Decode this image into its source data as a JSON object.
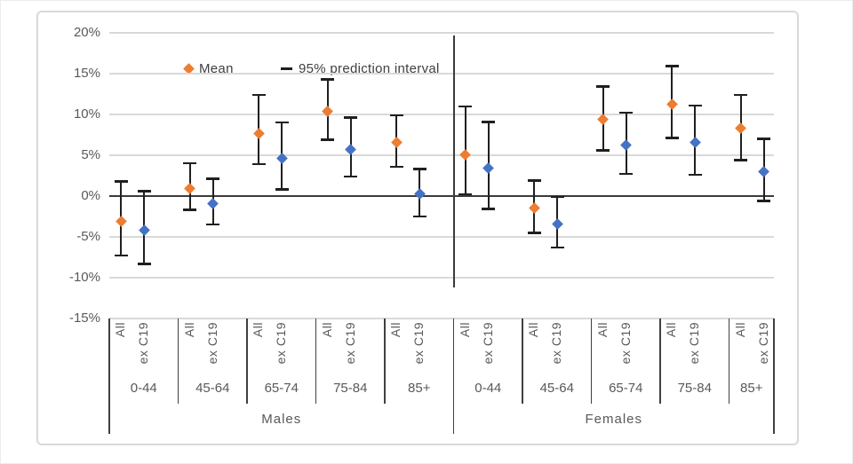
{
  "chart_data": {
    "type": "scatter",
    "title": "",
    "legend": [
      {
        "label": "Mean",
        "marker": "diamond",
        "color": "#ED7D31"
      },
      {
        "label": "95% prediction interval",
        "marker": "dash",
        "color": "#1F1F1F"
      }
    ],
    "y_axis": {
      "ylim": [
        -15,
        20
      ],
      "ticks": [
        20,
        15,
        10,
        5,
        0,
        -5,
        -10,
        -15
      ],
      "tick_labels": [
        "20%",
        "15%",
        "10%",
        "5%",
        "0%",
        "-5%",
        "-10%",
        "-15%"
      ],
      "grid": true
    },
    "x_axis": {
      "series_labels": [
        "All",
        "ex C19"
      ],
      "age_bands": [
        "0-44",
        "45-64",
        "65-74",
        "75-84",
        "85+"
      ],
      "groups": [
        "Males",
        "Females"
      ]
    },
    "colors": {
      "All": "#ED7D31",
      "ex C19": "#4472C4",
      "error_bar": "#1F1F1F",
      "gridline": "#D9D9D9",
      "axis_line": "#3B3B3B",
      "label_text": "#595959"
    },
    "points": [
      {
        "group": "Males",
        "age": "0-44",
        "series": "All",
        "mean": -3.1,
        "lo": -7.3,
        "hi": 1.8
      },
      {
        "group": "Males",
        "age": "0-44",
        "series": "ex C19",
        "mean": -4.2,
        "lo": -8.3,
        "hi": 0.6
      },
      {
        "group": "Males",
        "age": "45-64",
        "series": "All",
        "mean": 0.9,
        "lo": -1.7,
        "hi": 4.0
      },
      {
        "group": "Males",
        "age": "45-64",
        "series": "ex C19",
        "mean": -0.9,
        "lo": -3.5,
        "hi": 2.1
      },
      {
        "group": "Males",
        "age": "65-74",
        "series": "All",
        "mean": 7.7,
        "lo": 3.9,
        "hi": 12.4
      },
      {
        "group": "Males",
        "age": "65-74",
        "series": "ex C19",
        "mean": 4.6,
        "lo": 0.8,
        "hi": 9.0
      },
      {
        "group": "Males",
        "age": "75-84",
        "series": "All",
        "mean": 10.4,
        "lo": 6.9,
        "hi": 14.3
      },
      {
        "group": "Males",
        "age": "75-84",
        "series": "ex C19",
        "mean": 5.7,
        "lo": 2.4,
        "hi": 9.6
      },
      {
        "group": "Males",
        "age": "85+",
        "series": "All",
        "mean": 6.6,
        "lo": 3.6,
        "hi": 9.9
      },
      {
        "group": "Males",
        "age": "85+",
        "series": "ex C19",
        "mean": 0.3,
        "lo": -2.5,
        "hi": 3.3
      },
      {
        "group": "Females",
        "age": "0-44",
        "series": "All",
        "mean": 5.1,
        "lo": 0.2,
        "hi": 11.0
      },
      {
        "group": "Females",
        "age": "0-44",
        "series": "ex C19",
        "mean": 3.4,
        "lo": -1.6,
        "hi": 9.1
      },
      {
        "group": "Females",
        "age": "45-64",
        "series": "All",
        "mean": -1.5,
        "lo": -4.5,
        "hi": 1.9
      },
      {
        "group": "Females",
        "age": "45-64",
        "series": "ex C19",
        "mean": -3.4,
        "lo": -6.3,
        "hi": -0.1
      },
      {
        "group": "Females",
        "age": "65-74",
        "series": "All",
        "mean": 9.4,
        "lo": 5.6,
        "hi": 13.4
      },
      {
        "group": "Females",
        "age": "65-74",
        "series": "ex C19",
        "mean": 6.2,
        "lo": 2.7,
        "hi": 10.2
      },
      {
        "group": "Females",
        "age": "75-84",
        "series": "All",
        "mean": 11.3,
        "lo": 7.1,
        "hi": 15.9
      },
      {
        "group": "Females",
        "age": "75-84",
        "series": "ex C19",
        "mean": 6.6,
        "lo": 2.6,
        "hi": 11.1
      },
      {
        "group": "Females",
        "age": "85+",
        "series": "All",
        "mean": 8.3,
        "lo": 4.4,
        "hi": 12.4
      },
      {
        "group": "Females",
        "age": "85+",
        "series": "ex C19",
        "mean": 3.0,
        "lo": -0.6,
        "hi": 7.0
      }
    ]
  }
}
